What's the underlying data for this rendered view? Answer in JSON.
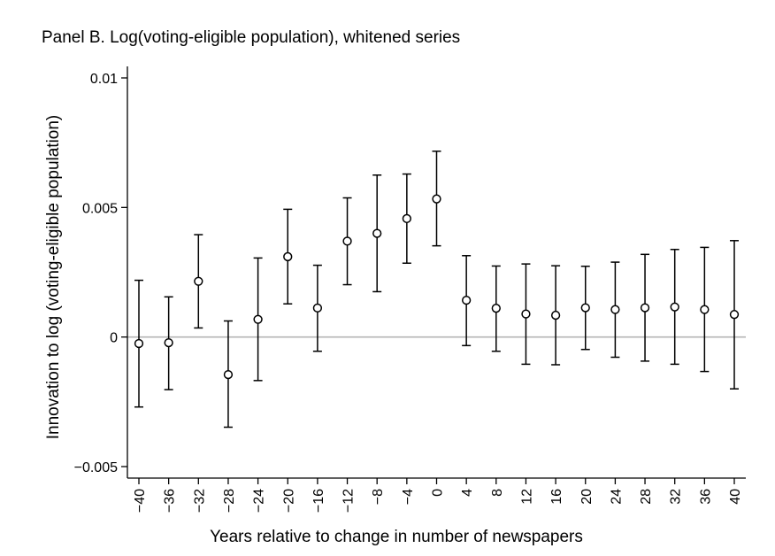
{
  "chart_data": {
    "type": "scatter",
    "title": "Panel B. Log(voting-eligible population), whitened series",
    "xlabel": "Years relative to change in number of newspapers",
    "ylabel": "Innovation to log (voting-eligible population)",
    "ylim": [
      -0.0053,
      0.0101
    ],
    "y_ticks": [
      -0.005,
      0,
      0.005,
      0.01
    ],
    "y_tick_labels": [
      "−0.005",
      "0",
      "0.005",
      "0.01"
    ],
    "x_tick_labels": [
      "−40",
      "−36",
      "−32",
      "−28",
      "−24",
      "−20",
      "−16",
      "−12",
      "−8",
      "−4",
      "0",
      "4",
      "8",
      "12",
      "16",
      "20",
      "24",
      "28",
      "32",
      "36",
      "40"
    ],
    "reference_line_y": 0,
    "grid": false,
    "series": [
      {
        "x": [
          -40,
          -36,
          -32,
          -28,
          -24,
          -20,
          -16,
          -12,
          -8,
          -4,
          0,
          4,
          8,
          12,
          16,
          20,
          24,
          28,
          32,
          36,
          40
        ],
        "y": [
          -0.00025,
          -0.00022,
          0.00215,
          -0.00145,
          0.00068,
          0.0031,
          0.00112,
          0.0037,
          0.004,
          0.00457,
          0.00533,
          0.00142,
          0.00111,
          0.00089,
          0.00084,
          0.00113,
          0.00106,
          0.00113,
          0.00116,
          0.00106,
          0.00087
        ],
        "ci_low": [
          -0.0027,
          -0.00203,
          0.00035,
          -0.00348,
          -0.00168,
          0.00128,
          -0.00055,
          0.00202,
          0.00175,
          0.00285,
          0.00352,
          -0.00033,
          -0.00055,
          -0.00105,
          -0.00107,
          -0.00048,
          -0.00078,
          -0.00093,
          -0.00105,
          -0.00133,
          -0.002
        ],
        "ci_high": [
          0.00219,
          0.00155,
          0.00395,
          0.00062,
          0.00305,
          0.00493,
          0.00277,
          0.00537,
          0.00625,
          0.00629,
          0.00717,
          0.00314,
          0.00274,
          0.00282,
          0.00275,
          0.00273,
          0.00289,
          0.00319,
          0.00338,
          0.00346,
          0.00372
        ]
      }
    ]
  }
}
